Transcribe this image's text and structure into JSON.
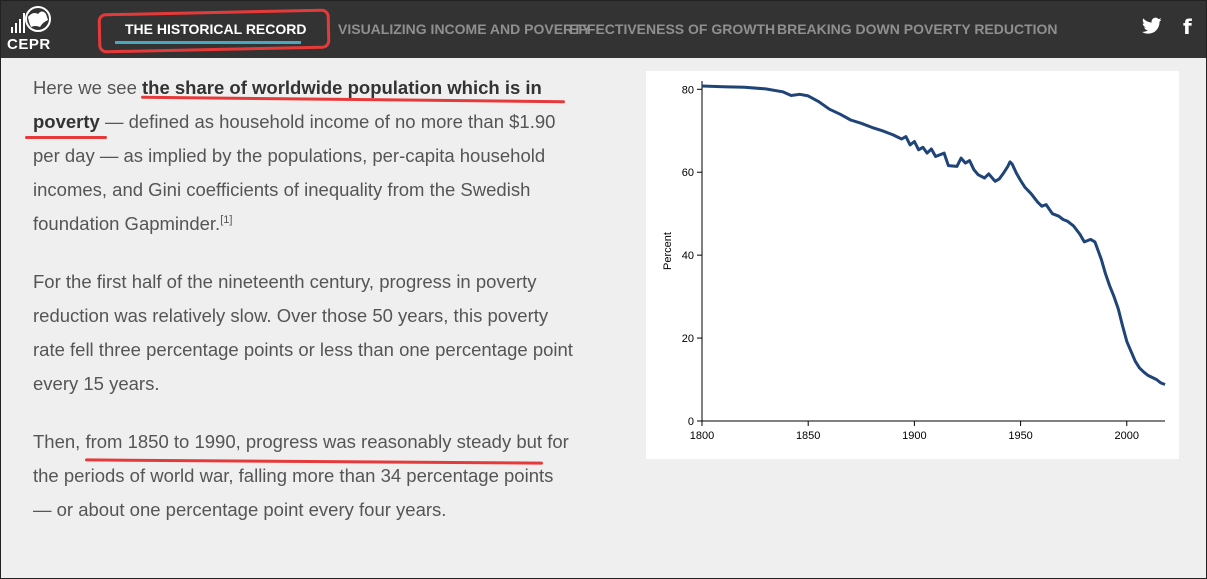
{
  "brand": {
    "logo_text": "CEPR"
  },
  "nav": {
    "items": [
      {
        "label": "THE HISTORICAL RECORD",
        "active": true
      },
      {
        "label": "VISUALIZING INCOME AND POVERTY",
        "active": false
      },
      {
        "label": "EFFECTIVENESS OF GROWTH",
        "active": false
      },
      {
        "label": "BREAKING DOWN POVERTY REDUCTION",
        "active": false
      }
    ],
    "accent_color": "#4aa7c2"
  },
  "social": {
    "twitter_icon": "twitter-icon",
    "facebook_icon": "facebook-icon",
    "facebook_glyph": "f"
  },
  "article": {
    "p1_pre": "Here we see ",
    "p1_bold": "the share of worldwide population which is in poverty",
    "p1_post": " — defined as household income of no more than $1.90 per day — as implied by the populations, per-capita household incomes, and Gini coefficients of inequality from the Swedish foundation Gapminder.",
    "p1_sup": "[1]",
    "p2": "For the first half of the nineteenth century, progress in poverty reduction was relatively slow. Over those 50 years, this poverty rate fell three percentage points or less than one percentage point every 15 years.",
    "p3": "Then, from 1850 to 1990, progress was reasonably steady but for the periods of world war, falling more than 34 percentage points — or about one percentage point every four years."
  },
  "annotation_color": "#e63a3a",
  "chart_data": {
    "type": "line",
    "ylabel": "Percent",
    "xlim": [
      1800,
      2018
    ],
    "ylim": [
      0,
      82
    ],
    "x_ticks": [
      "1800",
      "1850",
      "1900",
      "1950",
      "2000"
    ],
    "y_ticks": [
      "0",
      "20",
      "40",
      "60",
      "80"
    ],
    "line_color": "#1f4477",
    "x": [
      1800,
      1810,
      1820,
      1830,
      1838,
      1842,
      1846,
      1850,
      1855,
      1860,
      1865,
      1870,
      1875,
      1880,
      1885,
      1890,
      1894,
      1896,
      1898,
      1900,
      1902,
      1904,
      1906,
      1908,
      1910,
      1914,
      1916,
      1918,
      1920,
      1922,
      1924,
      1926,
      1928,
      1930,
      1933,
      1935,
      1938,
      1940,
      1942,
      1944,
      1945,
      1946,
      1948,
      1950,
      1952,
      1955,
      1958,
      1960,
      1962,
      1965,
      1968,
      1970,
      1972,
      1975,
      1978,
      1980,
      1983,
      1985,
      1988,
      1990,
      1992,
      1994,
      1996,
      1998,
      2000,
      2002,
      2004,
      2006,
      2008,
      2010,
      2012,
      2014,
      2016,
      2018
    ],
    "y": [
      80.8,
      80.6,
      80.5,
      80.1,
      79.4,
      78.5,
      78.8,
      78.4,
      77.0,
      75.2,
      74.0,
      72.6,
      71.8,
      70.8,
      70.0,
      69.0,
      68.0,
      68.6,
      66.6,
      67.4,
      65.4,
      66.0,
      64.6,
      65.6,
      63.8,
      64.6,
      61.6,
      61.5,
      61.4,
      63.4,
      62.2,
      62.8,
      60.6,
      59.4,
      58.6,
      59.6,
      57.8,
      58.4,
      59.8,
      61.4,
      62.5,
      62.0,
      59.8,
      58.0,
      56.4,
      54.8,
      52.8,
      51.8,
      52.2,
      50.0,
      49.4,
      48.6,
      48.2,
      47.0,
      45.0,
      43.2,
      43.8,
      43.2,
      39.0,
      35.5,
      32.5,
      30.0,
      27.0,
      23.0,
      19.2,
      16.8,
      14.4,
      12.8,
      11.8,
      11.0,
      10.5,
      10.0,
      9.2,
      8.8
    ]
  }
}
